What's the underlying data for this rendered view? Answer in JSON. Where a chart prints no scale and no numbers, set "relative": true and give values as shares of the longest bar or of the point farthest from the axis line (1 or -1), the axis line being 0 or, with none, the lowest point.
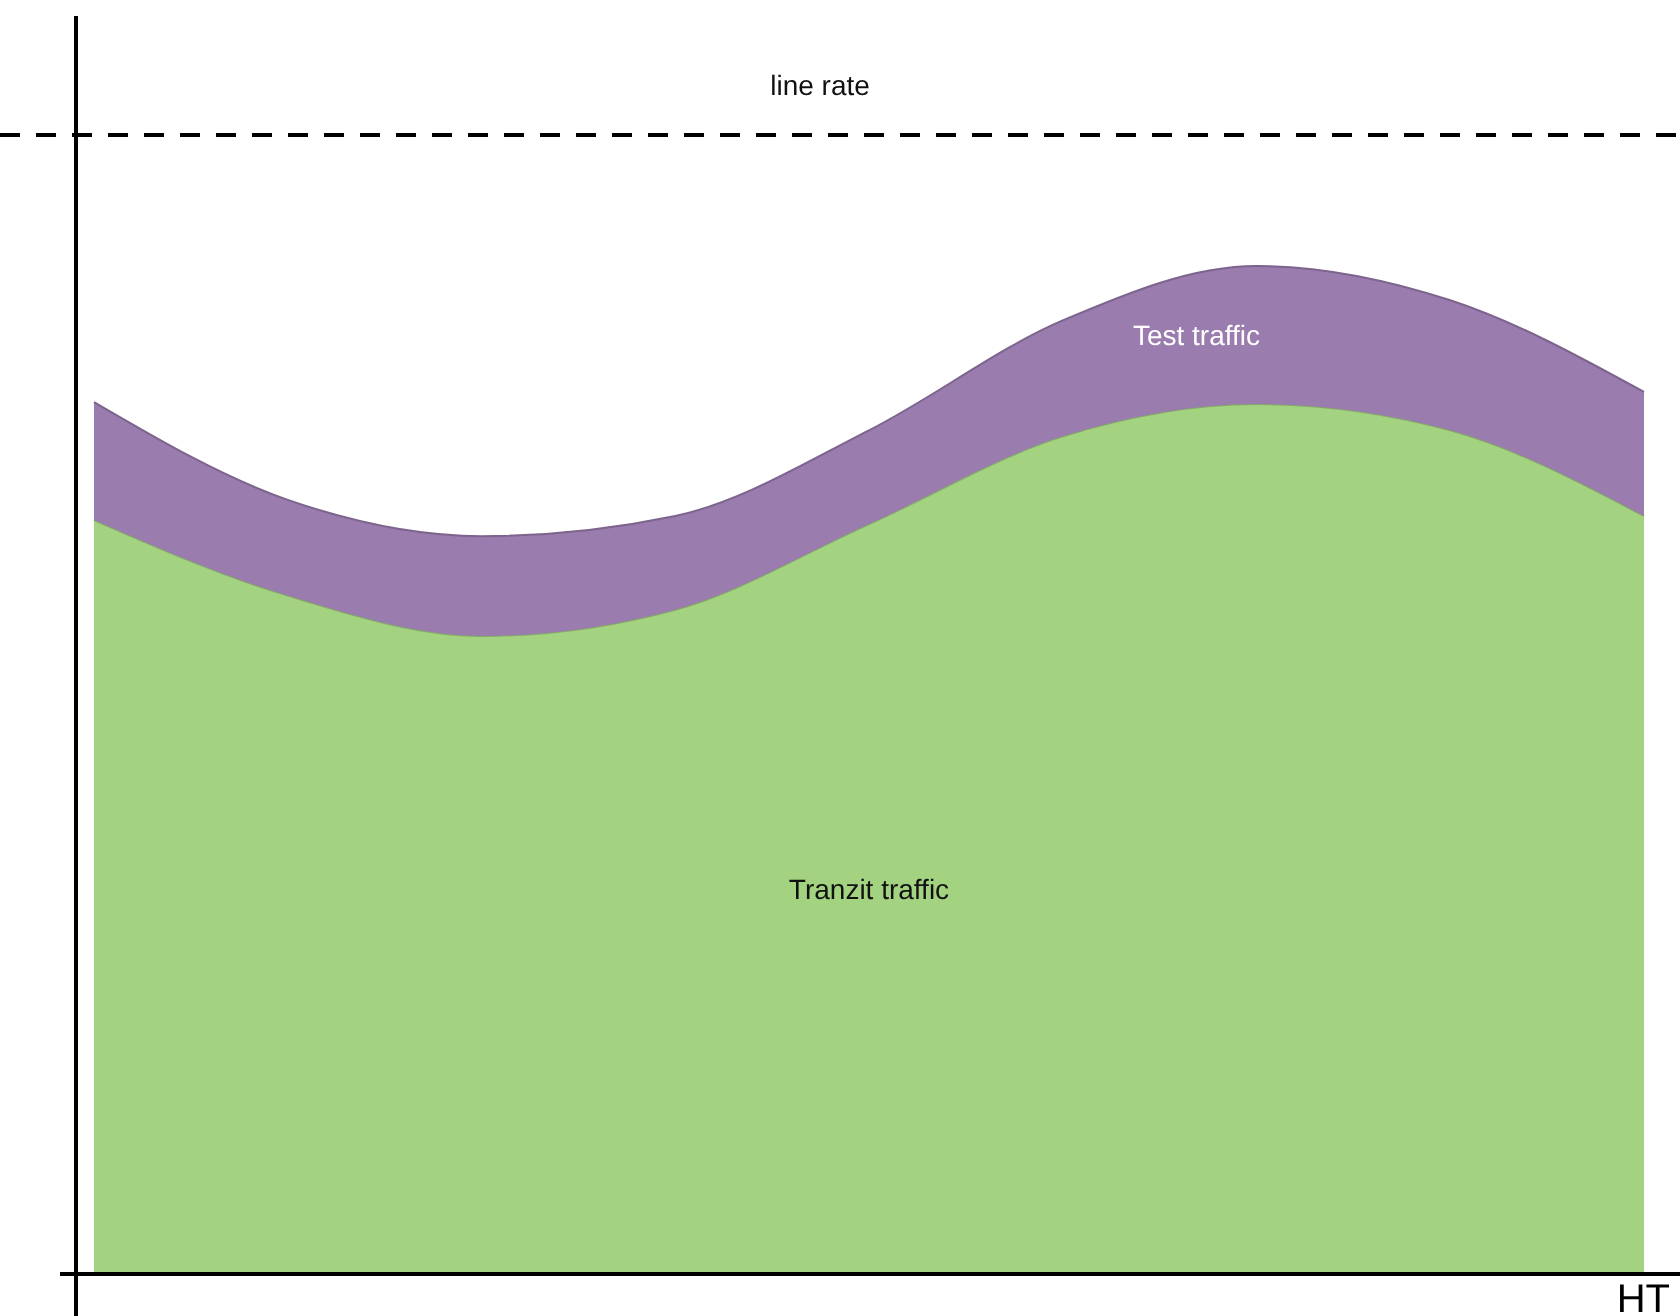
{
  "chart_data": {
    "type": "area",
    "relative": true,
    "stacked": true,
    "categories": [
      null,
      null,
      null,
      null,
      null,
      null,
      null,
      null,
      null
    ],
    "series": [
      {
        "name": "Tranzit traffic",
        "color": "#a3d280",
        "values": [
          0.748,
          0.673,
          0.633,
          0.659,
          0.744,
          0.831,
          0.863,
          0.837,
          0.752
        ]
      },
      {
        "name": "Test traffic",
        "color": "#9a7caf",
        "values": [
          0.117,
          0.095,
          0.099,
          0.093,
          0.093,
          0.115,
          0.137,
          0.129,
          0.123
        ]
      }
    ],
    "ref_lines": [
      {
        "axis": "y",
        "value": 1.13,
        "label": "line rate",
        "color": "#000000",
        "line_style": "dashed"
      }
    ],
    "annotations": [
      "HT"
    ],
    "grid": false
  }
}
